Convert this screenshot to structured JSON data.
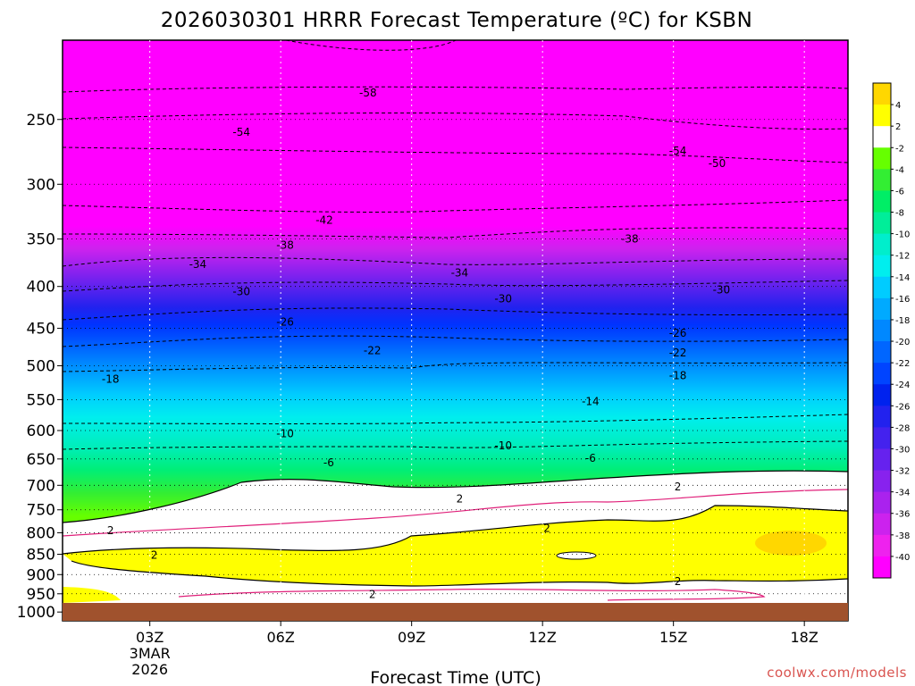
{
  "chart_data": {
    "type": "heatmap",
    "title": "2026030301 HRRR Forecast Temperature (ºC) for KSBN",
    "xlabel": "Forecast Time (UTC)",
    "ylabel": "",
    "credit": "coolwx.com/models",
    "x_ticks": [
      "03Z",
      "06Z",
      "09Z",
      "12Z",
      "15Z",
      "18Z"
    ],
    "x_tick_hours": [
      3,
      6,
      9,
      12,
      15,
      18
    ],
    "x_range_hours": [
      1,
      19
    ],
    "x_date_label": [
      "3MAR",
      "2026"
    ],
    "y_ticks": [
      250,
      300,
      350,
      400,
      450,
      500,
      550,
      600,
      650,
      700,
      750,
      800,
      850,
      900,
      950,
      1000
    ],
    "y_range_hpa": [
      200,
      1025
    ],
    "y_scale": "log-pressure",
    "grid": true,
    "ground_pressure_hpa": 1000,
    "colorbar": {
      "position": "right",
      "tick_labels": [
        "4",
        "2",
        "-2",
        "-4",
        "-6",
        "-8",
        "-10",
        "-12",
        "-14",
        "-16",
        "-18",
        "-20",
        "-22",
        "-24",
        "-26",
        "-28",
        "-30",
        "-32",
        "-34",
        "-36",
        "-38",
        "-40"
      ],
      "levels": [
        6,
        4,
        2,
        -2,
        -4,
        -6,
        -8,
        -10,
        -12,
        -14,
        -16,
        -18,
        -20,
        -22,
        -24,
        -26,
        -28,
        -30,
        -32,
        -34,
        -36,
        -38,
        -40,
        -42
      ],
      "colors": [
        "#ffd700",
        "#ffff00",
        "#ffffff",
        "#66ff00",
        "#33ee33",
        "#00ee66",
        "#00ee99",
        "#00eecc",
        "#00eeee",
        "#00ccff",
        "#00aaff",
        "#0088ff",
        "#0066ff",
        "#0044ff",
        "#0022ee",
        "#2222ee",
        "#4422ee",
        "#6622ee",
        "#8822ee",
        "#aa22ee",
        "#cc22ee",
        "#ee22ee",
        "#ff00ff"
      ]
    },
    "contour_labels": [
      {
        "text": "-58",
        "hour": 8.0,
        "hpa": 232
      },
      {
        "text": "-54",
        "hour": 5.1,
        "hpa": 259
      },
      {
        "text": "-54",
        "hour": 15.1,
        "hpa": 273
      },
      {
        "text": "-50",
        "hour": 16.0,
        "hpa": 283
      },
      {
        "text": "-42",
        "hour": 7.0,
        "hpa": 332
      },
      {
        "text": "-38",
        "hour": 6.1,
        "hpa": 356
      },
      {
        "text": "-38",
        "hour": 14.0,
        "hpa": 350
      },
      {
        "text": "-34",
        "hour": 4.1,
        "hpa": 376
      },
      {
        "text": "-34",
        "hour": 10.1,
        "hpa": 385
      },
      {
        "text": "-30",
        "hour": 5.1,
        "hpa": 406
      },
      {
        "text": "-30",
        "hour": 11.1,
        "hpa": 414
      },
      {
        "text": "-30",
        "hour": 16.1,
        "hpa": 404
      },
      {
        "text": "-26",
        "hour": 6.1,
        "hpa": 442
      },
      {
        "text": "-26",
        "hour": 15.1,
        "hpa": 456
      },
      {
        "text": "-22",
        "hour": 8.1,
        "hpa": 479
      },
      {
        "text": "-22",
        "hour": 15.1,
        "hpa": 482
      },
      {
        "text": "-18",
        "hour": 2.1,
        "hpa": 519
      },
      {
        "text": "-18",
        "hour": 15.1,
        "hpa": 514
      },
      {
        "text": "-14",
        "hour": 13.1,
        "hpa": 553
      },
      {
        "text": "-10",
        "hour": 6.1,
        "hpa": 605
      },
      {
        "text": "-10",
        "hour": 11.1,
        "hpa": 626
      },
      {
        "text": "-6",
        "hour": 7.1,
        "hpa": 657
      },
      {
        "text": "-6",
        "hour": 13.1,
        "hpa": 649
      },
      {
        "text": "2",
        "hour": 10.1,
        "hpa": 727
      },
      {
        "text": "2",
        "hour": 15.1,
        "hpa": 703
      },
      {
        "text": "2",
        "hour": 2.1,
        "hpa": 795
      },
      {
        "text": "2",
        "hour": 12.1,
        "hpa": 790
      },
      {
        "text": "2",
        "hour": 3.1,
        "hpa": 852
      },
      {
        "text": "2",
        "hour": 15.1,
        "hpa": 918
      },
      {
        "text": "2",
        "hour": 8.1,
        "hpa": 952
      }
    ]
  }
}
